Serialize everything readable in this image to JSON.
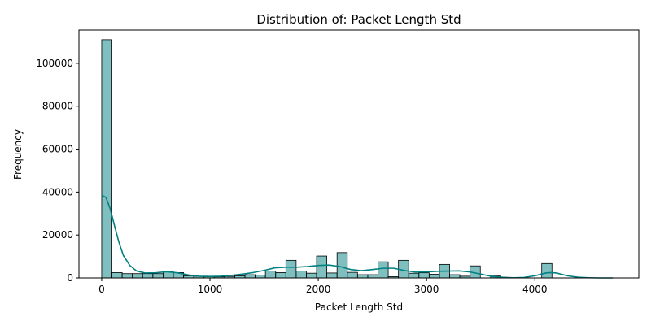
{
  "chart_data": {
    "type": "bar",
    "title": "Distribution of: Packet Length Std",
    "xlabel": "Packet Length Std",
    "ylabel": "Frequency",
    "xlim": [
      -210,
      4960
    ],
    "ylim": [
      0,
      115500
    ],
    "xticks": [
      0,
      1000,
      2000,
      3000,
      4000
    ],
    "xtick_labels": [
      "0",
      "1000",
      "2000",
      "3000",
      "4000"
    ],
    "yticks": [
      0,
      20000,
      40000,
      60000,
      80000,
      100000
    ],
    "ytick_labels": [
      "0",
      "20000",
      "40000",
      "60000",
      "80000",
      "100000"
    ],
    "grid": false,
    "bin_width": 94.5,
    "bins_start": 0,
    "bar_color": "#008080",
    "bar_alpha": 0.5,
    "edge_color": "#000000",
    "kde_color": "#008080",
    "counts": [
      111000,
      2500,
      2000,
      2000,
      2000,
      2000,
      3000,
      2500,
      1000,
      800,
      600,
      500,
      700,
      1000,
      1500,
      1300,
      3200,
      2500,
      8200,
      3200,
      2200,
      10200,
      2300,
      11800,
      2600,
      1500,
      1500,
      7500,
      600,
      8200,
      2200,
      2400,
      1700,
      6300,
      1500,
      800,
      5600,
      0,
      900,
      0,
      0,
      0,
      0,
      6700,
      0,
      0,
      0,
      0,
      0,
      0
    ],
    "kde": {
      "x": [
        0,
        40,
        80,
        120,
        160,
        200,
        260,
        320,
        400,
        500,
        600,
        700,
        800,
        900,
        1000,
        1100,
        1200,
        1300,
        1400,
        1500,
        1600,
        1700,
        1800,
        1900,
        2000,
        2100,
        2200,
        2300,
        2400,
        2500,
        2600,
        2700,
        2800,
        2900,
        3000,
        3100,
        3200,
        3300,
        3400,
        3500,
        3600,
        3700,
        3800,
        3900,
        4000,
        4100,
        4150,
        4200,
        4300,
        4400,
        4500,
        4600,
        4720
      ],
      "y": [
        38500,
        37500,
        32000,
        24000,
        16500,
        10500,
        5800,
        3300,
        2300,
        2400,
        2900,
        2400,
        1400,
        800,
        700,
        800,
        1200,
        1800,
        2500,
        3500,
        4700,
        5000,
        5000,
        5300,
        5800,
        6000,
        5300,
        3900,
        3400,
        3900,
        4500,
        4500,
        3400,
        2700,
        2800,
        3100,
        3200,
        3300,
        2800,
        1800,
        700,
        300,
        100,
        200,
        1000,
        2300,
        2500,
        2300,
        1000,
        300,
        100,
        0,
        0
      ]
    }
  }
}
